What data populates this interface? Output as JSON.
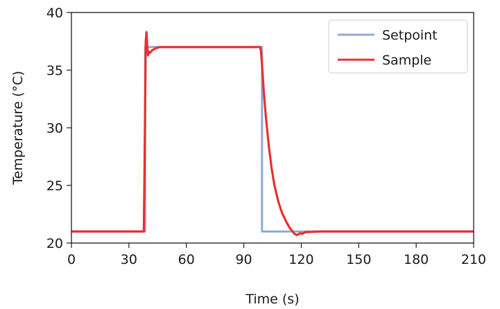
{
  "chart_data": {
    "type": "line",
    "title": "",
    "xlabel": "Time (s)",
    "ylabel": "Temperature (°C)",
    "xlim": [
      0,
      210
    ],
    "ylim": [
      20,
      40
    ],
    "xticks": [
      0,
      30,
      60,
      90,
      120,
      150,
      180,
      210
    ],
    "yticks": [
      20,
      25,
      30,
      35,
      40
    ],
    "grid": false,
    "legend_position": "top-right",
    "series": [
      {
        "name": "Setpoint",
        "color": "#8eaad8",
        "x": [
          0,
          38.5,
          38.5,
          99.5,
          99.5,
          210
        ],
        "y": [
          21,
          21,
          37,
          37,
          21,
          21
        ]
      },
      {
        "name": "Sample",
        "color": "#e8302f",
        "x": [
          0,
          37.8,
          38.2,
          38.6,
          38.8,
          39.2,
          39.6,
          40.0,
          40.5,
          41.0,
          42.0,
          43.0,
          44.0,
          46.0,
          50.0,
          60.0,
          70.0,
          80.0,
          90.0,
          98.5,
          99.0,
          99.7,
          100.5,
          101.5,
          103.0,
          104.5,
          106.0,
          108.0,
          110.0,
          112.0,
          114.0,
          115.5,
          116.5,
          117.5,
          118.5,
          119.5,
          120.5,
          121.5,
          122.5,
          130.0,
          150.0,
          180.0,
          210.0
        ],
        "y": [
          21,
          21,
          27,
          34,
          37.5,
          38.3,
          37.0,
          36.3,
          36.6,
          36.5,
          36.7,
          36.8,
          36.9,
          37.0,
          37.0,
          37.0,
          37.0,
          37.0,
          37.0,
          37.0,
          36.6,
          35.0,
          33.0,
          31.0,
          28.5,
          26.5,
          25.0,
          23.6,
          22.6,
          21.9,
          21.3,
          21.0,
          20.8,
          20.7,
          20.75,
          20.85,
          20.8,
          20.9,
          20.95,
          21.0,
          21.0,
          21.0,
          21.0
        ]
      }
    ]
  }
}
